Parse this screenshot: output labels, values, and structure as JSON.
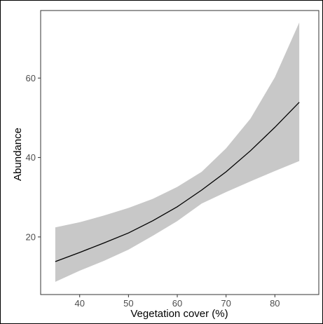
{
  "chart_data": {
    "type": "line",
    "xlabel": "Vegetation cover (%)",
    "ylabel": "Abundance",
    "xlim": [
      32,
      89
    ],
    "ylim": [
      5.5,
      77
    ],
    "x_ticks": [
      40,
      50,
      60,
      70,
      80
    ],
    "y_ticks": [
      20,
      40,
      60
    ],
    "grid": false,
    "series": [
      {
        "type": "line",
        "x": [
          35,
          40,
          45,
          50,
          55,
          60,
          65,
          70,
          75,
          80,
          85
        ],
        "y": [
          13.8,
          16.1,
          18.5,
          21.0,
          24.1,
          27.6,
          31.8,
          36.4,
          41.7,
          47.6,
          53.9
        ],
        "color": "#000000"
      },
      {
        "type": "ribbon",
        "x": [
          35,
          40,
          45,
          50,
          55,
          60,
          65,
          70,
          75,
          80,
          85
        ],
        "lower": [
          8.7,
          11.5,
          14.0,
          16.8,
          20.3,
          24.0,
          28.4,
          31.3,
          34.0,
          36.6,
          39.1
        ],
        "upper": [
          22.4,
          23.7,
          25.4,
          27.3,
          29.6,
          32.6,
          36.4,
          42.3,
          49.8,
          60.2,
          74.0
        ],
        "color": "#c8c8c8"
      }
    ]
  }
}
